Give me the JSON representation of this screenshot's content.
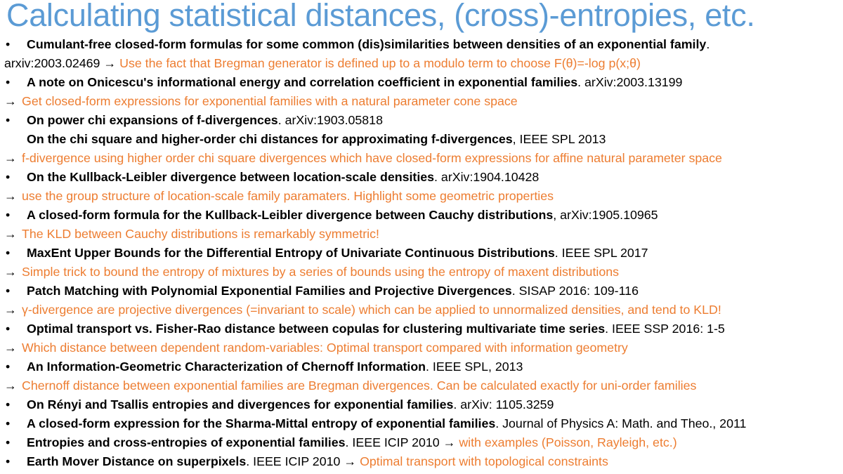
{
  "title": "Calculating statistical distances, (cross)-entropies, etc.",
  "bullet_char": "•",
  "arrow": "→",
  "colors": {
    "title": "#5b9bd5",
    "note": "#ed7d31",
    "text": "#000000"
  },
  "lines": [
    {
      "bold": "Cumulant-free closed-form formulas for some common (dis)similarities between densities of an exponential family",
      "plain": "."
    },
    {
      "plain": "arxiv:2003.02469",
      "note": "Use the fact that Bregman generator is defined up to a modulo term to choose F(θ)=-log p(x;θ)"
    },
    {
      "bold": "A note on Onicescu's informational energy and correlation coefficient in exponential families",
      "plain": ". arXiv:2003.13199"
    },
    {
      "note": "Get closed-form expressions for exponential families with a natural parameter cone space"
    },
    {
      "bold": "On power chi expansions of f-divergences",
      "plain": ". arXiv:1903.05818"
    },
    {
      "bold": "On the chi square and higher-order chi distances for approximating f-divergences",
      "plain": ", IEEE SPL 2013"
    },
    {
      "note": "f-divergence using higher order chi square divergences which have closed-form expressions for affine natural parameter space"
    },
    {
      "bold": "On the Kullback-Leibler divergence between location-scale densities",
      "plain": ". arXiv:1904.10428"
    },
    {
      "note": "use the group structure of location-scale family paramaters. Highlight some geometric properties"
    },
    {
      "bold": "A closed-form formula for the Kullback-Leibler divergence between Cauchy distributions",
      "plain": ", arXiv:1905.10965"
    },
    {
      "note": "The KLD between Cauchy distributions is remarkably symmetric!"
    },
    {
      "bold": "MaxEnt Upper Bounds for the Differential Entropy of Univariate Continuous Distributions",
      "plain": ". IEEE SPL 2017"
    },
    {
      "note": "Simple trick to bound the entropy of mixtures by a series of bounds using the entropy of maxent distributions"
    },
    {
      "bold": "Patch Matching with Polynomial Exponential Families and Projective Divergences",
      "plain": ". SISAP 2016: 109-116"
    },
    {
      "note": "γ-divergence are projective divergences (=invariant to scale) which can be applied to unnormalized densities, and tend to KLD!"
    },
    {
      "bold": "Optimal transport vs. Fisher-Rao distance between copulas for clustering multivariate time series",
      "plain": ". IEEE SSP 2016: 1-5"
    },
    {
      "note": "Which distance between dependent random-variables: Optimal transport compared with information geometry"
    },
    {
      "bold": "An Information-Geometric Characterization of Chernoff Information",
      "plain": ". IEEE SPL, 2013"
    },
    {
      "note": "Chernoff distance between exponential families are Bregman divergences. Can be calculated exactly for uni-order families"
    },
    {
      "bold": "On Rényi and Tsallis entropies and divergences for exponential families",
      "plain": ". arXiv: 1105.3259"
    },
    {
      "bold": "A closed-form expression for the Sharma-Mittal entropy of exponential families",
      "plain": ". Journal of Physics A: Math. and Theo., 2011"
    },
    {
      "bold": "Entropies and cross-entropies of exponential families",
      "plain": ". IEEE ICIP 2010",
      "note": "with examples (Poisson, Rayleigh, etc.)"
    },
    {
      "bold": "Earth Mover Distance on superpixels",
      "plain": ". IEEE ICIP 2010",
      "note": "Optimal transport with topological constraints"
    }
  ]
}
